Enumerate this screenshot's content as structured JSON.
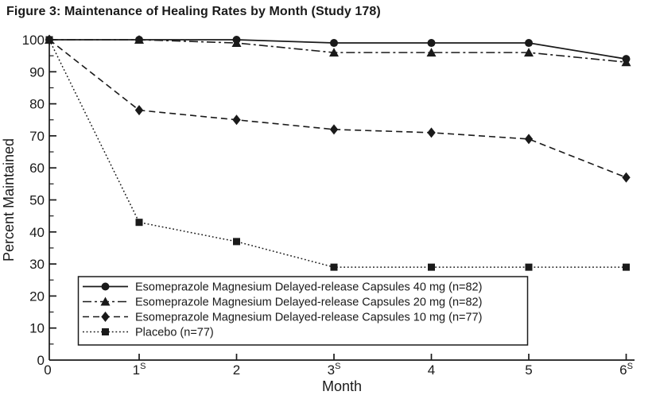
{
  "chart_data": {
    "type": "line",
    "title": "Figure 3: Maintenance of Healing Rates by Month (Study 178)",
    "xlabel": "Month",
    "ylabel": "Percent Maintained",
    "x": [
      0,
      1,
      2,
      3,
      4,
      5,
      6
    ],
    "x_tick_labels": [
      {
        "base": "0",
        "sup": ""
      },
      {
        "base": "1",
        "sup": "S"
      },
      {
        "base": "2",
        "sup": ""
      },
      {
        "base": "3",
        "sup": "S"
      },
      {
        "base": "4",
        "sup": ""
      },
      {
        "base": "5",
        "sup": ""
      },
      {
        "base": "6",
        "sup": "S"
      }
    ],
    "ylim": [
      0,
      100
    ],
    "y_major_ticks": [
      0,
      10,
      20,
      30,
      40,
      50,
      60,
      70,
      80,
      90,
      100
    ],
    "y_minor_step": 5,
    "grid": false,
    "legend_position": "inside bottom-left",
    "line_color": "#1a1a1a",
    "background_color": "#ffffff",
    "series": [
      {
        "name": "Esomeprazole Magnesium Delayed-release Capsules 40 mg (n=82)",
        "line_style": "solid",
        "marker": "circle",
        "values": [
          100,
          100,
          100,
          99,
          99,
          99,
          94
        ]
      },
      {
        "name": "Esomeprazole Magnesium Delayed-release Capsules 20 mg (n=82)",
        "line_style": "dashdot",
        "marker": "triangle",
        "values": [
          100,
          100,
          99,
          96,
          96,
          96,
          93
        ]
      },
      {
        "name": "Esomeprazole Magnesium Delayed-release Capsules 10 mg (n=77)",
        "line_style": "dashed",
        "marker": "diamond",
        "values": [
          100,
          78,
          75,
          72,
          71,
          69,
          57
        ]
      },
      {
        "name": "Placebo (n=77)",
        "line_style": "dotted",
        "marker": "square",
        "values": [
          100,
          43,
          37,
          29,
          29,
          29,
          29
        ]
      }
    ]
  }
}
